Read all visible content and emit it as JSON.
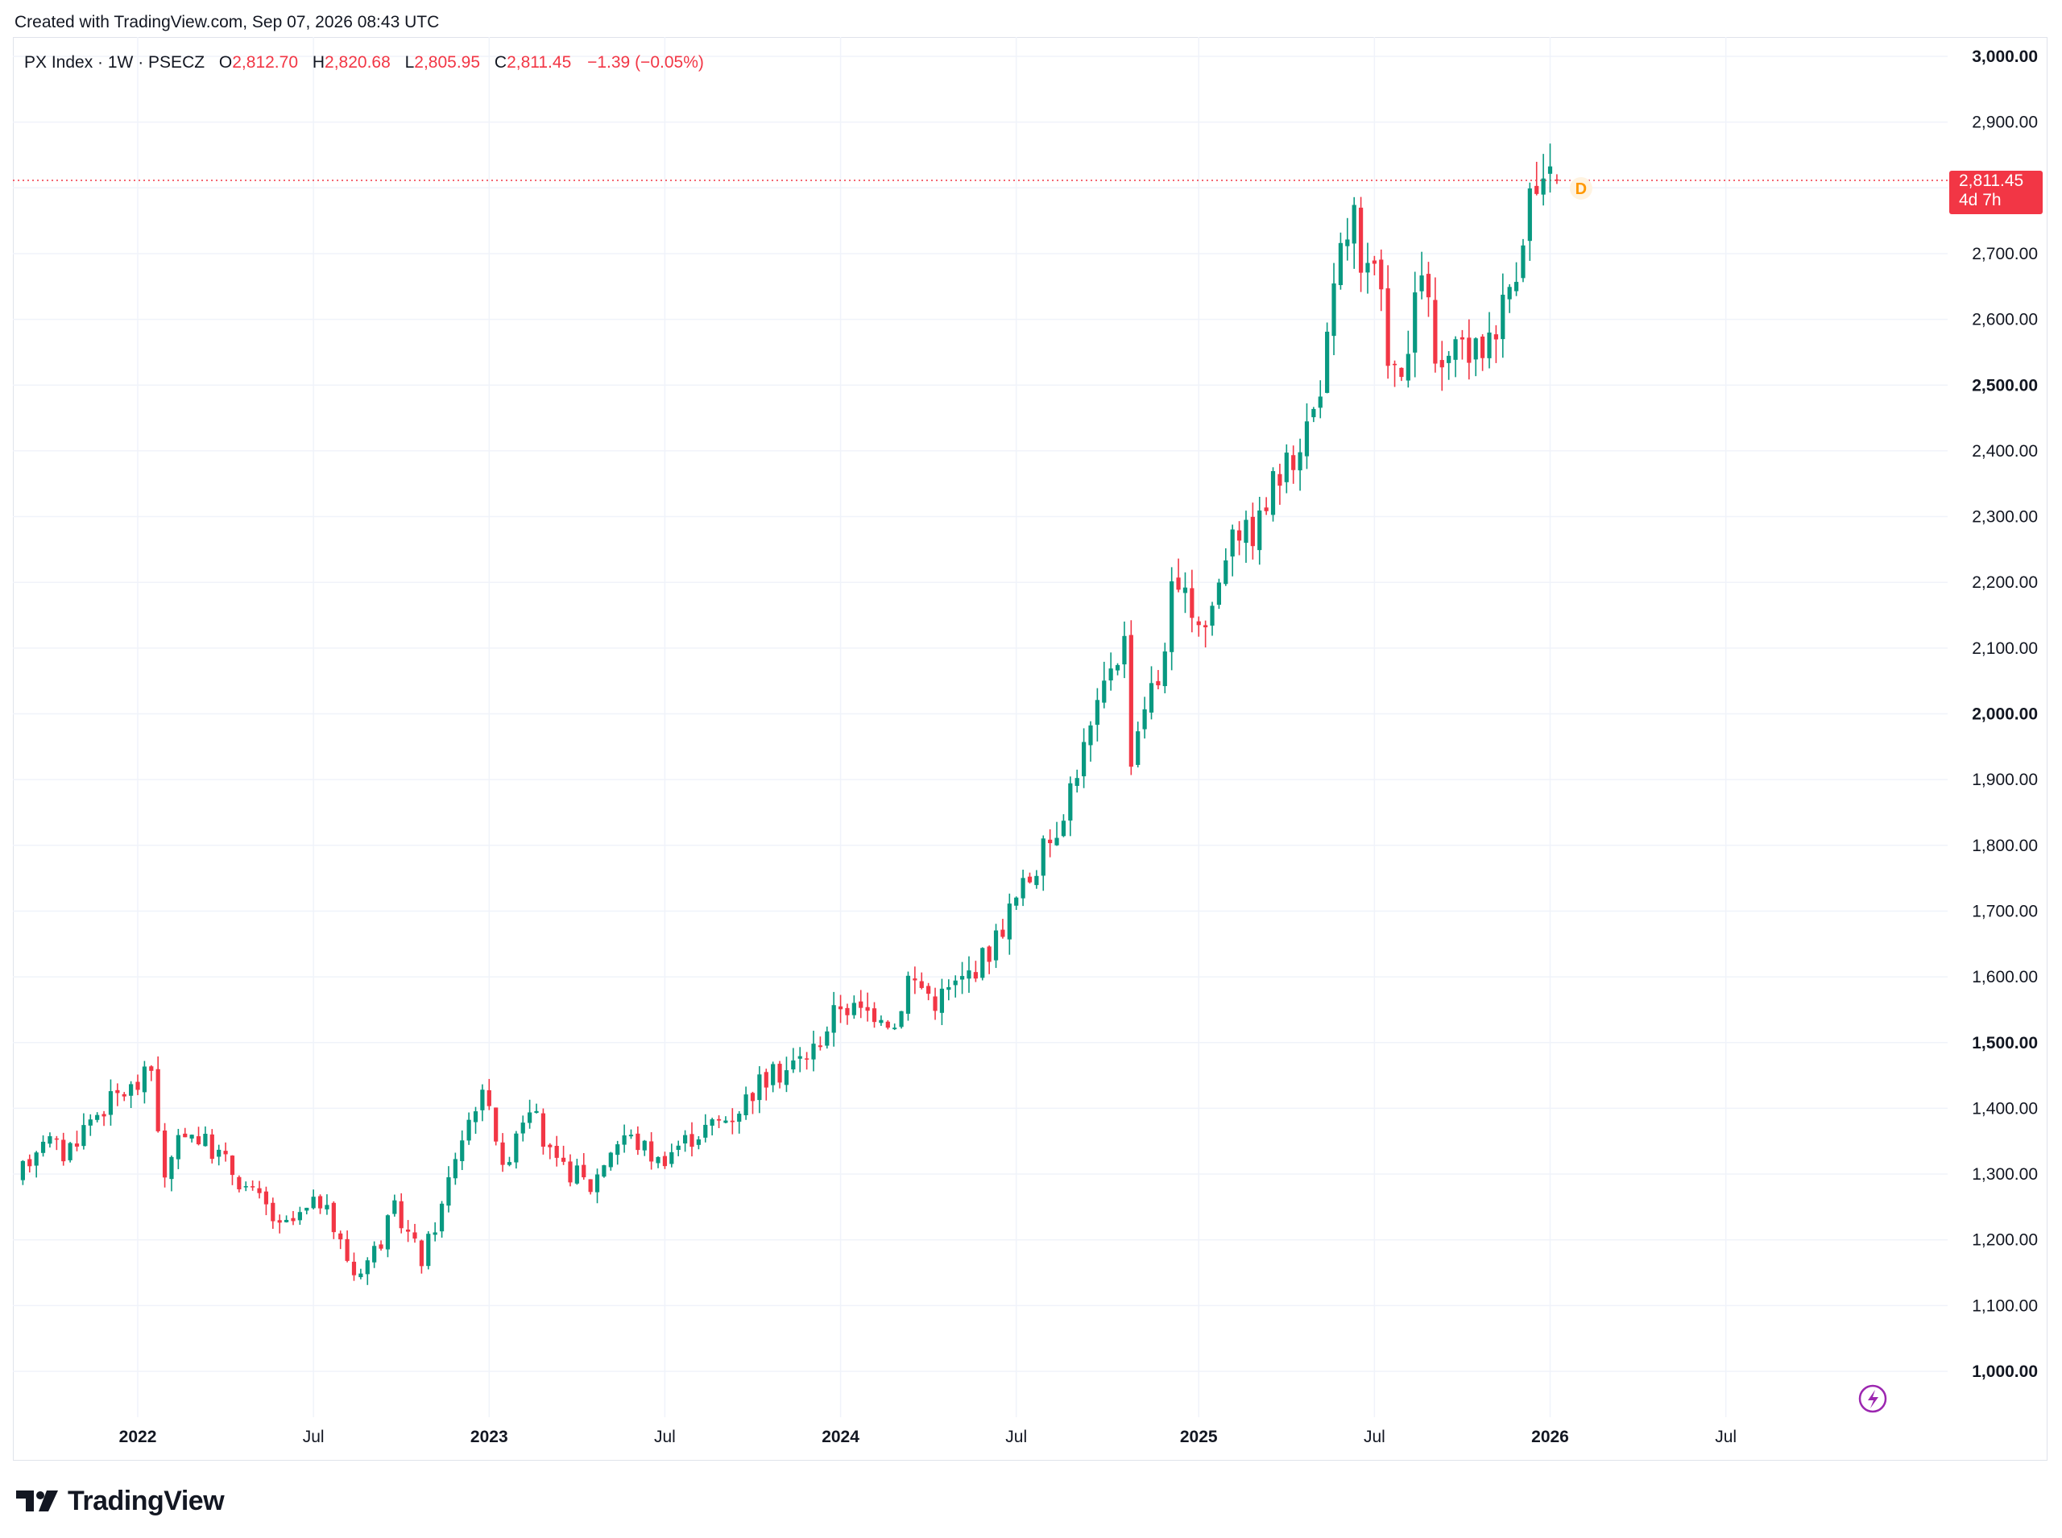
{
  "header": {
    "created_text": "Created with TradingView.com, Sep 07, 2026 08:43 UTC"
  },
  "legend": {
    "symbol": "PX Index · 1W · PSECZ",
    "o_label": "O",
    "o_value": "2,812.70",
    "h_label": "H",
    "h_value": "2,820.68",
    "l_label": "L",
    "l_value": "2,805.95",
    "c_label": "C",
    "c_value": "2,811.45",
    "change": "−1.39 (−0.05%)"
  },
  "price_tag": {
    "price": "2,811.45",
    "countdown": "4d 7h"
  },
  "dividend_marker": "D",
  "branding": {
    "logo_text": "TradingView"
  },
  "colors": {
    "up": "#089981",
    "down": "#f23645",
    "grid": "#f0f3fa",
    "text": "#131722",
    "price_line": "#f23645"
  },
  "chart_data": {
    "type": "candlestick",
    "timeframe": "1W",
    "y_ticks": [
      "1,000.00",
      "1,100.00",
      "1,200.00",
      "1,300.00",
      "1,400.00",
      "1,500.00",
      "1,600.00",
      "1,700.00",
      "1,800.00",
      "1,900.00",
      "2,000.00",
      "2,100.00",
      "2,200.00",
      "2,300.00",
      "2,400.00",
      "2,500.00",
      "2,600.00",
      "2,700.00",
      "2,800.00",
      "2,900.00",
      "3,000.00"
    ],
    "y_bold": [
      "1,000.00",
      "1,500.00",
      "2,000.00",
      "2,500.00",
      "3,000.00"
    ],
    "ylim": [
      930,
      3040
    ],
    "x_ticks": [
      {
        "label": "2022",
        "bold": true,
        "week": 30
      },
      {
        "label": "Jul",
        "bold": false,
        "week": 56
      },
      {
        "label": "2023",
        "bold": true,
        "week": 82
      },
      {
        "label": "Jul",
        "bold": false,
        "week": 108
      },
      {
        "label": "2024",
        "bold": true,
        "week": 134
      },
      {
        "label": "Jul",
        "bold": false,
        "week": 160
      },
      {
        "label": "2025",
        "bold": true,
        "week": 187
      },
      {
        "label": "Jul",
        "bold": false,
        "week": 213
      },
      {
        "label": "2026",
        "bold": true,
        "week": 239
      },
      {
        "label": "Jul",
        "bold": false,
        "week": 265
      }
    ],
    "week_range": [
      12,
      289
    ],
    "waypoints": [
      [
        13,
        1288
      ],
      [
        17,
        1360
      ],
      [
        20,
        1330
      ],
      [
        24,
        1385
      ],
      [
        28,
        1420
      ],
      [
        31,
        1435
      ],
      [
        33,
        1460
      ],
      [
        35,
        1290
      ],
      [
        38,
        1370
      ],
      [
        43,
        1330
      ],
      [
        47,
        1280
      ],
      [
        50,
        1250
      ],
      [
        52,
        1215
      ],
      [
        55,
        1235
      ],
      [
        58,
        1260
      ],
      [
        61,
        1195
      ],
      [
        63,
        1150
      ],
      [
        65,
        1170
      ],
      [
        67,
        1200
      ],
      [
        69,
        1245
      ],
      [
        71,
        1210
      ],
      [
        73,
        1170
      ],
      [
        76,
        1250
      ],
      [
        78,
        1330
      ],
      [
        81,
        1410
      ],
      [
        83,
        1420
      ],
      [
        85,
        1300
      ],
      [
        87,
        1370
      ],
      [
        89,
        1410
      ],
      [
        91,
        1350
      ],
      [
        93,
        1310
      ],
      [
        96,
        1300
      ],
      [
        98,
        1280
      ],
      [
        101,
        1340
      ],
      [
        103,
        1360
      ],
      [
        106,
        1340
      ],
      [
        108,
        1320
      ],
      [
        111,
        1345
      ],
      [
        115,
        1370
      ],
      [
        119,
        1390
      ],
      [
        123,
        1440
      ],
      [
        127,
        1460
      ],
      [
        131,
        1490
      ],
      [
        135,
        1560
      ],
      [
        138,
        1545
      ],
      [
        141,
        1550
      ],
      [
        143,
        1525
      ],
      [
        145,
        1600
      ],
      [
        147,
        1585
      ],
      [
        149,
        1565
      ],
      [
        153,
        1595
      ],
      [
        157,
        1640
      ],
      [
        160,
        1700
      ],
      [
        164,
        1770
      ],
      [
        167,
        1830
      ],
      [
        170,
        1920
      ],
      [
        173,
        2000
      ],
      [
        175,
        2080
      ],
      [
        177,
        2110
      ],
      [
        178,
        1940
      ],
      [
        180,
        2020
      ],
      [
        182,
        2050
      ],
      [
        184,
        2180
      ],
      [
        187,
        2160
      ],
      [
        189,
        2135
      ],
      [
        191,
        2200
      ],
      [
        193,
        2300
      ],
      [
        195,
        2270
      ],
      [
        197,
        2290
      ],
      [
        199,
        2350
      ],
      [
        201,
        2370
      ],
      [
        203,
        2420
      ],
      [
        205,
        2460
      ],
      [
        207,
        2560
      ],
      [
        209,
        2700
      ],
      [
        211,
        2760
      ],
      [
        212,
        2650
      ],
      [
        214,
        2670
      ],
      [
        216,
        2560
      ],
      [
        218,
        2490
      ],
      [
        220,
        2610
      ],
      [
        221,
        2690
      ],
      [
        223,
        2530
      ],
      [
        225,
        2520
      ],
      [
        227,
        2560
      ],
      [
        229,
        2545
      ],
      [
        231,
        2580
      ],
      [
        233,
        2620
      ],
      [
        235,
        2690
      ],
      [
        237,
        2790
      ],
      [
        239,
        2790
      ],
      [
        240,
        2811
      ]
    ],
    "last_candle": {
      "open": 2812.7,
      "high": 2820.68,
      "low": 2805.95,
      "close": 2811.45
    },
    "last_price": 2811.45
  }
}
